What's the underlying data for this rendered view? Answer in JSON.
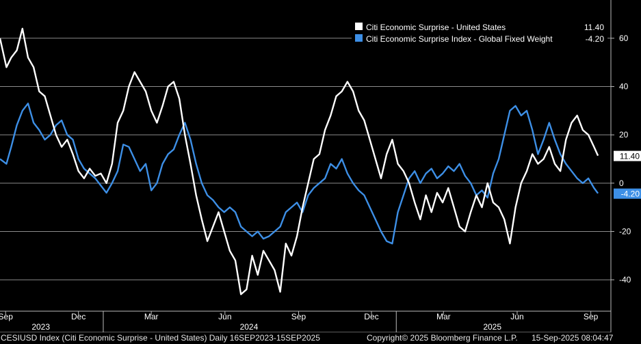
{
  "chart_data": {
    "type": "line",
    "x_start": "2023-08-25",
    "x_end": "2025-09-15",
    "ylim": [
      -53,
      73
    ],
    "y_ticks": [
      -40,
      -20,
      0,
      20,
      40,
      60
    ],
    "y_tick_labels": [
      "-40",
      "-20",
      "0",
      "20",
      "40",
      "60"
    ],
    "grid": true,
    "legend_position": "top-right",
    "x_months": [
      {
        "date": "2023-09-01",
        "label": "Sep"
      },
      {
        "date": "2023-12-01",
        "label": "Dec"
      },
      {
        "date": "2024-03-01",
        "label": "Mar"
      },
      {
        "date": "2024-06-01",
        "label": "Jun"
      },
      {
        "date": "2024-09-01",
        "label": "Sep"
      },
      {
        "date": "2024-12-01",
        "label": "Dec"
      },
      {
        "date": "2025-03-01",
        "label": "Mar"
      },
      {
        "date": "2025-06-01",
        "label": "Jun"
      },
      {
        "date": "2025-09-01",
        "label": "Sep"
      }
    ],
    "x_years": [
      {
        "date": "2023-10-15",
        "label": "2023",
        "start": "2023-08-25"
      },
      {
        "date": "2024-07-01",
        "label": "2024",
        "start": "2024-01-01"
      },
      {
        "date": "2025-05-01",
        "label": "2025",
        "start": "2025-01-01"
      }
    ],
    "series": [
      {
        "name": "Citi Economic Surprise - United States",
        "legend_value": "11.40",
        "last_value": 11.4,
        "last_label": "11.40",
        "color": "#ffffff",
        "points": [
          [
            "2023-08-25",
            60
          ],
          [
            "2023-09-02",
            48
          ],
          [
            "2023-09-08",
            52
          ],
          [
            "2023-09-15",
            55
          ],
          [
            "2023-09-22",
            64
          ],
          [
            "2023-09-29",
            52
          ],
          [
            "2023-10-06",
            48
          ],
          [
            "2023-10-13",
            38
          ],
          [
            "2023-10-20",
            36
          ],
          [
            "2023-10-27",
            28
          ],
          [
            "2023-11-03",
            20
          ],
          [
            "2023-11-10",
            15
          ],
          [
            "2023-11-17",
            18
          ],
          [
            "2023-11-24",
            12
          ],
          [
            "2023-12-01",
            5
          ],
          [
            "2023-12-08",
            2
          ],
          [
            "2023-12-15",
            6
          ],
          [
            "2023-12-22",
            3
          ],
          [
            "2023-12-29",
            4
          ],
          [
            "2024-01-05",
            0
          ],
          [
            "2024-01-12",
            8
          ],
          [
            "2024-01-19",
            25
          ],
          [
            "2024-01-26",
            30
          ],
          [
            "2024-02-02",
            40
          ],
          [
            "2024-02-09",
            46
          ],
          [
            "2024-02-16",
            42
          ],
          [
            "2024-02-23",
            38
          ],
          [
            "2024-03-01",
            30
          ],
          [
            "2024-03-08",
            25
          ],
          [
            "2024-03-15",
            32
          ],
          [
            "2024-03-22",
            40
          ],
          [
            "2024-03-29",
            42
          ],
          [
            "2024-04-05",
            35
          ],
          [
            "2024-04-12",
            20
          ],
          [
            "2024-04-19",
            8
          ],
          [
            "2024-04-26",
            -5
          ],
          [
            "2024-05-03",
            -15
          ],
          [
            "2024-05-10",
            -24
          ],
          [
            "2024-05-17",
            -18
          ],
          [
            "2024-05-24",
            -12
          ],
          [
            "2024-05-31",
            -20
          ],
          [
            "2024-06-07",
            -28
          ],
          [
            "2024-06-14",
            -32
          ],
          [
            "2024-06-21",
            -46
          ],
          [
            "2024-06-28",
            -44
          ],
          [
            "2024-07-05",
            -30
          ],
          [
            "2024-07-12",
            -38
          ],
          [
            "2024-07-19",
            -28
          ],
          [
            "2024-07-26",
            -32
          ],
          [
            "2024-08-02",
            -36
          ],
          [
            "2024-08-09",
            -45
          ],
          [
            "2024-08-16",
            -25
          ],
          [
            "2024-08-23",
            -30
          ],
          [
            "2024-08-30",
            -22
          ],
          [
            "2024-09-06",
            -10
          ],
          [
            "2024-09-13",
            0
          ],
          [
            "2024-09-20",
            10
          ],
          [
            "2024-09-27",
            12
          ],
          [
            "2024-10-04",
            22
          ],
          [
            "2024-10-11",
            28
          ],
          [
            "2024-10-18",
            36
          ],
          [
            "2024-10-25",
            38
          ],
          [
            "2024-11-01",
            42
          ],
          [
            "2024-11-08",
            38
          ],
          [
            "2024-11-15",
            30
          ],
          [
            "2024-11-22",
            26
          ],
          [
            "2024-11-29",
            18
          ],
          [
            "2024-12-06",
            10
          ],
          [
            "2024-12-13",
            2
          ],
          [
            "2024-12-20",
            12
          ],
          [
            "2024-12-27",
            18
          ],
          [
            "2025-01-03",
            8
          ],
          [
            "2025-01-10",
            5
          ],
          [
            "2025-01-17",
            0
          ],
          [
            "2025-01-24",
            -8
          ],
          [
            "2025-01-31",
            -15
          ],
          [
            "2025-02-07",
            -5
          ],
          [
            "2025-02-14",
            -12
          ],
          [
            "2025-02-21",
            -4
          ],
          [
            "2025-02-28",
            -8
          ],
          [
            "2025-03-07",
            -2
          ],
          [
            "2025-03-14",
            -10
          ],
          [
            "2025-03-21",
            -18
          ],
          [
            "2025-03-28",
            -20
          ],
          [
            "2025-04-04",
            -12
          ],
          [
            "2025-04-11",
            -5
          ],
          [
            "2025-04-18",
            -10
          ],
          [
            "2025-04-25",
            0
          ],
          [
            "2025-05-02",
            -8
          ],
          [
            "2025-05-09",
            -10
          ],
          [
            "2025-05-16",
            -15
          ],
          [
            "2025-05-23",
            -25
          ],
          [
            "2025-05-30",
            -10
          ],
          [
            "2025-06-06",
            0
          ],
          [
            "2025-06-13",
            5
          ],
          [
            "2025-06-20",
            12
          ],
          [
            "2025-06-27",
            8
          ],
          [
            "2025-07-04",
            10
          ],
          [
            "2025-07-11",
            15
          ],
          [
            "2025-07-18",
            8
          ],
          [
            "2025-07-25",
            5
          ],
          [
            "2025-08-01",
            18
          ],
          [
            "2025-08-08",
            25
          ],
          [
            "2025-08-15",
            28
          ],
          [
            "2025-08-22",
            22
          ],
          [
            "2025-08-29",
            20
          ],
          [
            "2025-09-05",
            15
          ],
          [
            "2025-09-10",
            11.4
          ]
        ]
      },
      {
        "name": "Citi Economic Surprise Index - Global Fixed Weight",
        "legend_value": "-4.20",
        "last_value": -4.2,
        "last_label": "-4.20",
        "color": "#3d8fe6",
        "points": [
          [
            "2023-08-25",
            10
          ],
          [
            "2023-09-02",
            8
          ],
          [
            "2023-09-08",
            15
          ],
          [
            "2023-09-15",
            24
          ],
          [
            "2023-09-22",
            30
          ],
          [
            "2023-09-29",
            33
          ],
          [
            "2023-10-06",
            25
          ],
          [
            "2023-10-13",
            22
          ],
          [
            "2023-10-20",
            18
          ],
          [
            "2023-10-27",
            20
          ],
          [
            "2023-11-03",
            24
          ],
          [
            "2023-11-10",
            26
          ],
          [
            "2023-11-17",
            20
          ],
          [
            "2023-11-24",
            18
          ],
          [
            "2023-12-01",
            10
          ],
          [
            "2023-12-08",
            6
          ],
          [
            "2023-12-15",
            4
          ],
          [
            "2023-12-22",
            2
          ],
          [
            "2024-01-05",
            -4
          ],
          [
            "2024-01-12",
            0
          ],
          [
            "2024-01-19",
            5
          ],
          [
            "2024-01-26",
            16
          ],
          [
            "2024-02-02",
            15
          ],
          [
            "2024-02-09",
            10
          ],
          [
            "2024-02-16",
            5
          ],
          [
            "2024-02-23",
            8
          ],
          [
            "2024-03-01",
            -3
          ],
          [
            "2024-03-08",
            0
          ],
          [
            "2024-03-15",
            8
          ],
          [
            "2024-03-22",
            12
          ],
          [
            "2024-03-29",
            14
          ],
          [
            "2024-04-05",
            20
          ],
          [
            "2024-04-12",
            25
          ],
          [
            "2024-04-19",
            18
          ],
          [
            "2024-04-26",
            8
          ],
          [
            "2024-05-03",
            0
          ],
          [
            "2024-05-10",
            -5
          ],
          [
            "2024-05-17",
            -7
          ],
          [
            "2024-05-24",
            -10
          ],
          [
            "2024-05-31",
            -12
          ],
          [
            "2024-06-07",
            -10
          ],
          [
            "2024-06-14",
            -12
          ],
          [
            "2024-06-21",
            -18
          ],
          [
            "2024-06-28",
            -20
          ],
          [
            "2024-07-05",
            -22
          ],
          [
            "2024-07-12",
            -20
          ],
          [
            "2024-07-19",
            -23
          ],
          [
            "2024-07-26",
            -22
          ],
          [
            "2024-08-02",
            -20
          ],
          [
            "2024-08-09",
            -18
          ],
          [
            "2024-08-16",
            -12
          ],
          [
            "2024-08-23",
            -10
          ],
          [
            "2024-08-30",
            -8
          ],
          [
            "2024-09-06",
            -12
          ],
          [
            "2024-09-13",
            -5
          ],
          [
            "2024-09-20",
            -2
          ],
          [
            "2024-09-27",
            0
          ],
          [
            "2024-10-04",
            2
          ],
          [
            "2024-10-11",
            8
          ],
          [
            "2024-10-18",
            6
          ],
          [
            "2024-10-25",
            10
          ],
          [
            "2024-11-01",
            4
          ],
          [
            "2024-11-08",
            0
          ],
          [
            "2024-11-15",
            -3
          ],
          [
            "2024-11-22",
            -5
          ],
          [
            "2024-11-29",
            -10
          ],
          [
            "2024-12-06",
            -15
          ],
          [
            "2024-12-13",
            -20
          ],
          [
            "2024-12-20",
            -24
          ],
          [
            "2024-12-27",
            -25
          ],
          [
            "2025-01-03",
            -12
          ],
          [
            "2025-01-10",
            -5
          ],
          [
            "2025-01-17",
            2
          ],
          [
            "2025-01-24",
            5
          ],
          [
            "2025-01-31",
            0
          ],
          [
            "2025-02-07",
            4
          ],
          [
            "2025-02-14",
            6
          ],
          [
            "2025-02-21",
            2
          ],
          [
            "2025-02-28",
            4
          ],
          [
            "2025-03-07",
            7
          ],
          [
            "2025-03-14",
            5
          ],
          [
            "2025-03-21",
            8
          ],
          [
            "2025-03-28",
            3
          ],
          [
            "2025-04-04",
            0
          ],
          [
            "2025-04-11",
            -5
          ],
          [
            "2025-04-18",
            -3
          ],
          [
            "2025-04-25",
            -6
          ],
          [
            "2025-05-02",
            4
          ],
          [
            "2025-05-09",
            10
          ],
          [
            "2025-05-16",
            20
          ],
          [
            "2025-05-23",
            30
          ],
          [
            "2025-05-30",
            32
          ],
          [
            "2025-06-06",
            28
          ],
          [
            "2025-06-13",
            30
          ],
          [
            "2025-06-20",
            22
          ],
          [
            "2025-06-27",
            12
          ],
          [
            "2025-07-04",
            18
          ],
          [
            "2025-07-11",
            25
          ],
          [
            "2025-07-18",
            18
          ],
          [
            "2025-07-25",
            12
          ],
          [
            "2025-08-01",
            8
          ],
          [
            "2025-08-08",
            5
          ],
          [
            "2025-08-15",
            2
          ],
          [
            "2025-08-22",
            0
          ],
          [
            "2025-08-29",
            2
          ],
          [
            "2025-09-05",
            -2
          ],
          [
            "2025-09-10",
            -4.2
          ]
        ]
      }
    ]
  },
  "footer": {
    "left": "CESIUSD Index (Citi Economic Surprise - United States)  Daily 16SEP2023-15SEP2025",
    "middle": "Copyright© 2025 Bloomberg Finance L.P.",
    "right": "15-Sep-2025 08:04:47"
  },
  "colors": {
    "background": "#000000",
    "grid": "#8c8c8c",
    "us_series": "#ffffff",
    "global_series": "#3d8fe6"
  }
}
